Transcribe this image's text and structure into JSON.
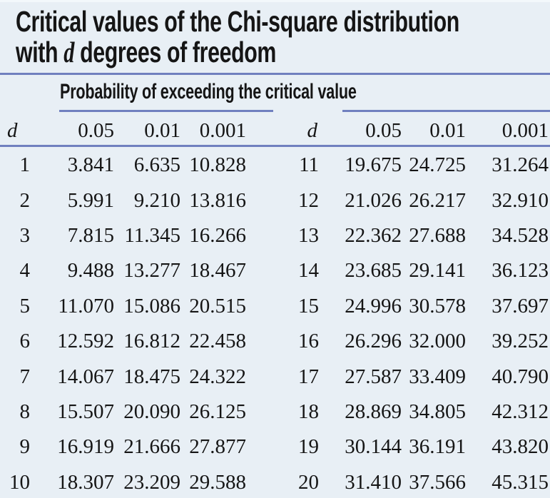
{
  "page": {
    "title_line1": "Critical values of the Chi-square distribution",
    "title_line2_pre": "with ",
    "title_line2_var": "d",
    "title_line2_post": " degrees of freedom"
  },
  "header": {
    "group_label": "Probability of exceeding the critical value",
    "d_label": "d",
    "prob_labels": [
      "0.05",
      "0.01",
      "0.001"
    ]
  },
  "table": {
    "left_rows": [
      {
        "d": "1",
        "values": [
          "3.841",
          "6.635",
          "10.828"
        ]
      },
      {
        "d": "2",
        "values": [
          "5.991",
          "9.210",
          "13.816"
        ]
      },
      {
        "d": "3",
        "values": [
          "7.815",
          "11.345",
          "16.266"
        ]
      },
      {
        "d": "4",
        "values": [
          "9.488",
          "13.277",
          "18.467"
        ]
      },
      {
        "d": "5",
        "values": [
          "11.070",
          "15.086",
          "20.515"
        ]
      },
      {
        "d": "6",
        "values": [
          "12.592",
          "16.812",
          "22.458"
        ]
      },
      {
        "d": "7",
        "values": [
          "14.067",
          "18.475",
          "24.322"
        ]
      },
      {
        "d": "8",
        "values": [
          "15.507",
          "20.090",
          "26.125"
        ]
      },
      {
        "d": "9",
        "values": [
          "16.919",
          "21.666",
          "27.877"
        ]
      },
      {
        "d": "10",
        "values": [
          "18.307",
          "23.209",
          "29.588"
        ]
      }
    ],
    "right_rows": [
      {
        "d": "11",
        "values": [
          "19.675",
          "24.725",
          "31.264"
        ]
      },
      {
        "d": "12",
        "values": [
          "21.026",
          "26.217",
          "32.910"
        ]
      },
      {
        "d": "13",
        "values": [
          "22.362",
          "27.688",
          "34.528"
        ]
      },
      {
        "d": "14",
        "values": [
          "23.685",
          "29.141",
          "36.123"
        ]
      },
      {
        "d": "15",
        "values": [
          "24.996",
          "30.578",
          "37.697"
        ]
      },
      {
        "d": "16",
        "values": [
          "26.296",
          "32.000",
          "39.252"
        ]
      },
      {
        "d": "17",
        "values": [
          "27.587",
          "33.409",
          "40.790"
        ]
      },
      {
        "d": "18",
        "values": [
          "28.869",
          "34.805",
          "42.312"
        ]
      },
      {
        "d": "19",
        "values": [
          "30.144",
          "36.191",
          "43.820"
        ]
      },
      {
        "d": "20",
        "values": [
          "31.410",
          "37.566",
          "45.315"
        ]
      }
    ]
  },
  "colors": {
    "background": "#e8eff5",
    "rule": "#7080bf",
    "text": "#151515"
  },
  "chart_data": {
    "type": "table",
    "title": "Critical values of the Chi-square distribution with d degrees of freedom",
    "column_group_label": "Probability of exceeding the critical value",
    "columns": [
      "d",
      "0.05",
      "0.01",
      "0.001"
    ],
    "rows": [
      [
        1,
        3.841,
        6.635,
        10.828
      ],
      [
        2,
        5.991,
        9.21,
        13.816
      ],
      [
        3,
        7.815,
        11.345,
        16.266
      ],
      [
        4,
        9.488,
        13.277,
        18.467
      ],
      [
        5,
        11.07,
        15.086,
        20.515
      ],
      [
        6,
        12.592,
        16.812,
        22.458
      ],
      [
        7,
        14.067,
        18.475,
        24.322
      ],
      [
        8,
        15.507,
        20.09,
        26.125
      ],
      [
        9,
        16.919,
        21.666,
        27.877
      ],
      [
        10,
        18.307,
        23.209,
        29.588
      ],
      [
        11,
        19.675,
        24.725,
        31.264
      ],
      [
        12,
        21.026,
        26.217,
        32.91
      ],
      [
        13,
        22.362,
        27.688,
        34.528
      ],
      [
        14,
        23.685,
        29.141,
        36.123
      ],
      [
        15,
        24.996,
        30.578,
        37.697
      ],
      [
        16,
        26.296,
        32.0,
        39.252
      ],
      [
        17,
        27.587,
        33.409,
        40.79
      ],
      [
        18,
        28.869,
        34.805,
        42.312
      ],
      [
        19,
        30.144,
        36.191,
        43.82
      ],
      [
        20,
        31.41,
        37.566,
        45.315
      ]
    ]
  }
}
